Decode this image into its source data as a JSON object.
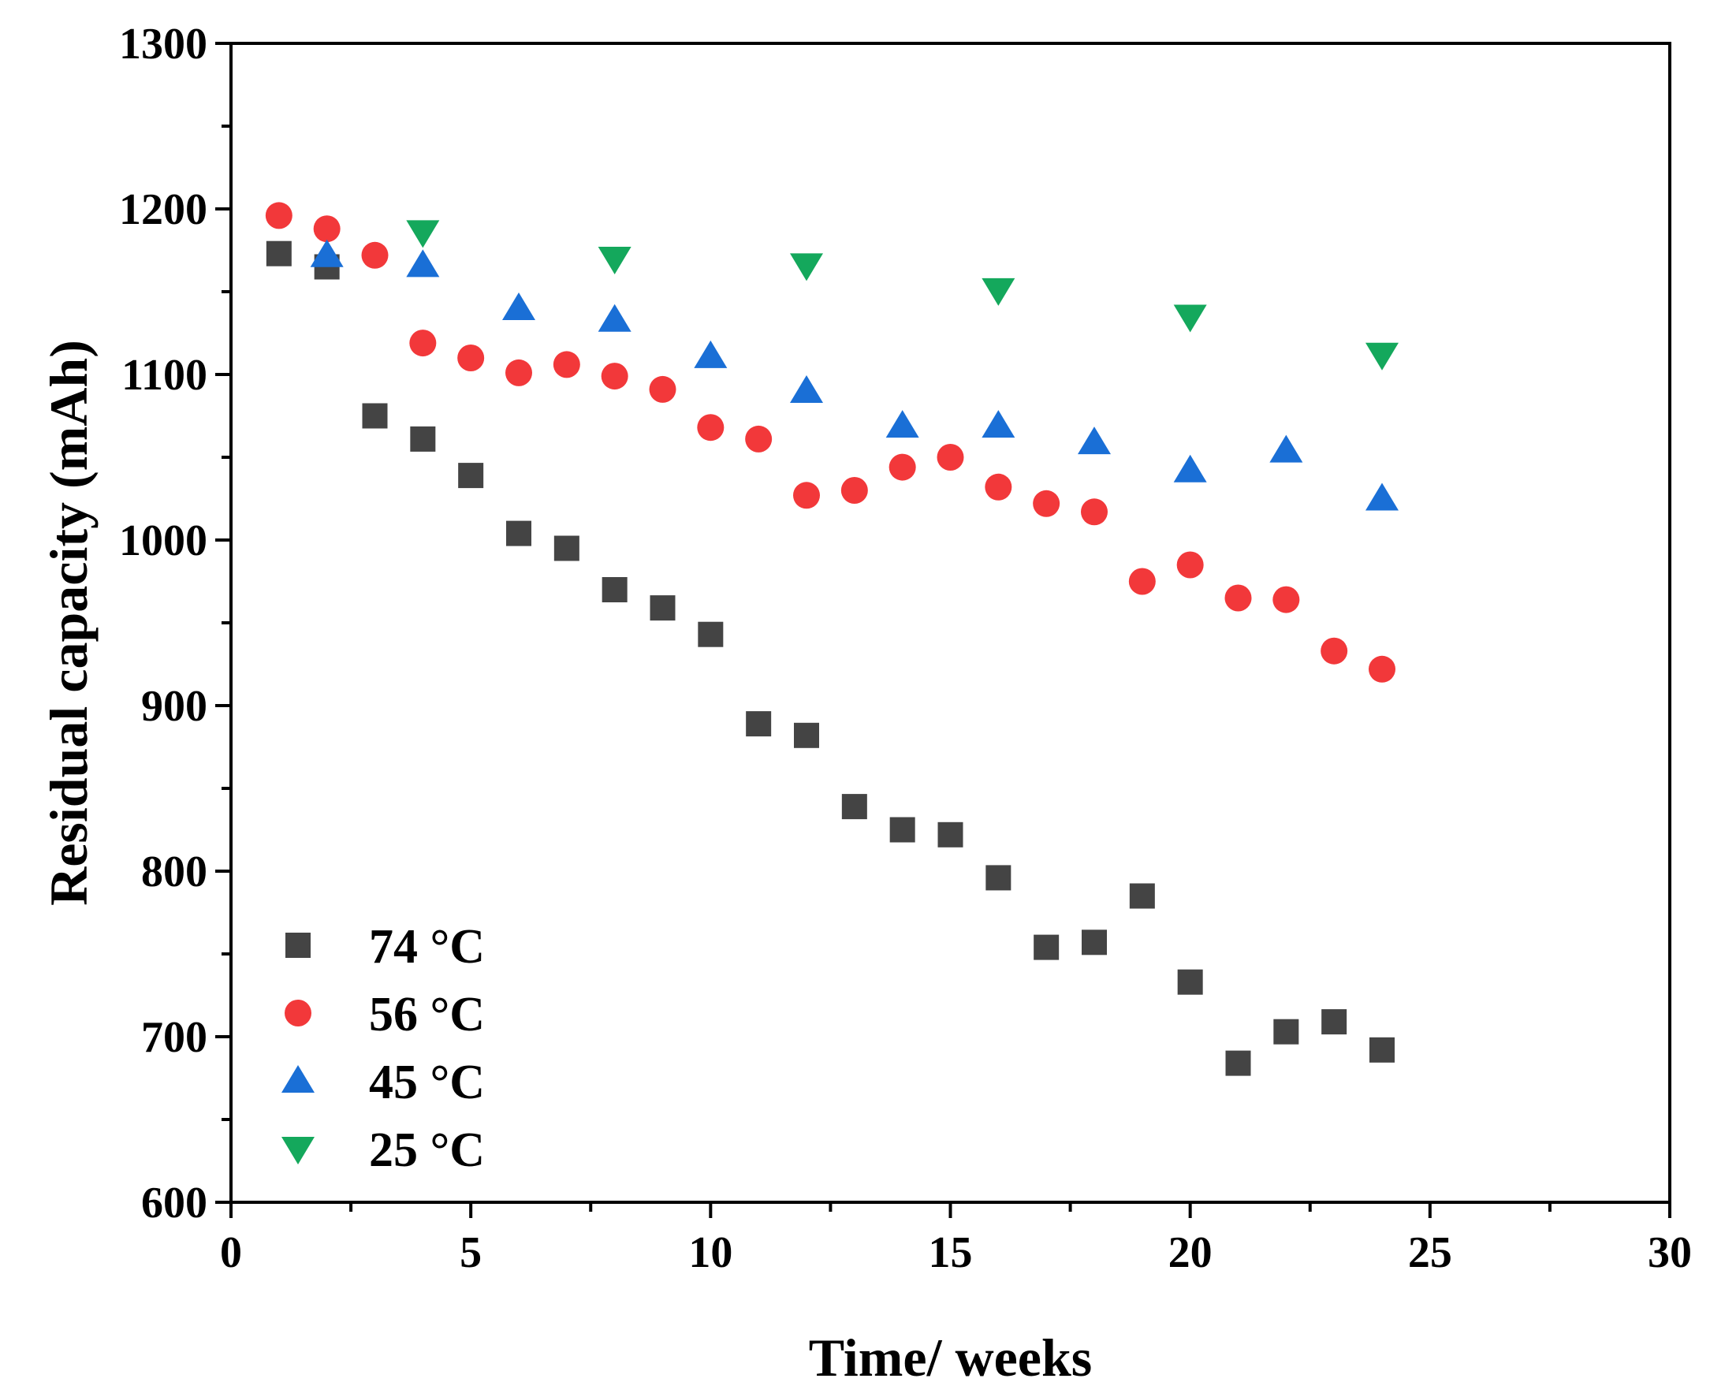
{
  "chart_data": {
    "type": "scatter",
    "title": "",
    "xlabel": "Time/ weeks",
    "ylabel": "Residual capacity (mAh)",
    "xlim": [
      0,
      30
    ],
    "ylim": [
      600,
      1300
    ],
    "xticks": [
      "0",
      "5",
      "10",
      "15",
      "20",
      "25",
      "30"
    ],
    "yticks": [
      "600",
      "700",
      "800",
      "900",
      "1000",
      "1100",
      "1200",
      "1300"
    ],
    "grid": false,
    "legend_position": "bottom-left",
    "series": [
      {
        "name": "74 °C",
        "marker": "square",
        "color": "#444444",
        "x": [
          1,
          2,
          3,
          4,
          5,
          6,
          7,
          8,
          9,
          10,
          11,
          12,
          13,
          14,
          15,
          16,
          17,
          18,
          19,
          20,
          21,
          22,
          23,
          24
        ],
        "y": [
          1173,
          1165,
          1075,
          1061,
          1039,
          1004,
          995,
          970,
          959,
          943,
          889,
          882,
          839,
          825,
          822,
          796,
          754,
          757,
          785,
          733,
          684,
          703,
          709,
          692
        ]
      },
      {
        "name": "56 °C",
        "marker": "circle",
        "color": "#f2383a",
        "x": [
          1,
          2,
          3,
          4,
          5,
          6,
          7,
          8,
          9,
          10,
          11,
          12,
          13,
          14,
          15,
          16,
          17,
          18,
          19,
          20,
          21,
          22,
          23,
          24
        ],
        "y": [
          1196,
          1188,
          1172,
          1119,
          1110,
          1101,
          1106,
          1099,
          1091,
          1068,
          1061,
          1027,
          1030,
          1044,
          1050,
          1032,
          1022,
          1017,
          975,
          985,
          965,
          964,
          933,
          922
        ]
      },
      {
        "name": "45 °C",
        "marker": "triangle-up",
        "color": "#1a6fd6",
        "x": [
          2,
          4,
          6,
          8,
          10,
          12,
          14,
          16,
          18,
          20,
          22,
          24
        ],
        "y": [
          1172,
          1166,
          1140,
          1133,
          1111,
          1090,
          1069,
          1069,
          1059,
          1042,
          1054,
          1025
        ]
      },
      {
        "name": "25 °C",
        "marker": "triangle-down",
        "color": "#14a85c",
        "x": [
          4,
          8,
          12,
          16,
          20,
          24
        ],
        "y": [
          1186,
          1170,
          1166,
          1151,
          1135,
          1112
        ]
      }
    ]
  }
}
